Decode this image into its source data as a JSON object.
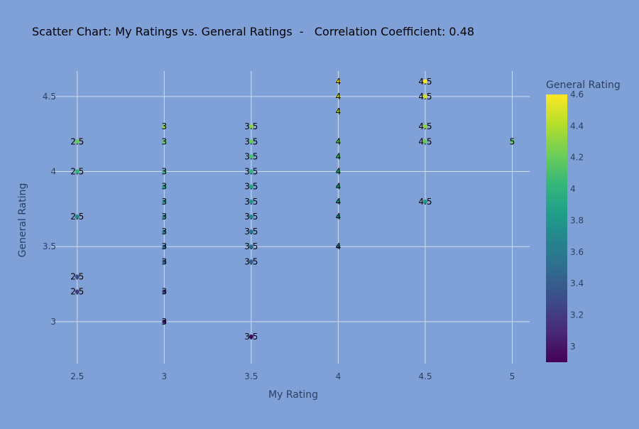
{
  "chart_data": {
    "type": "scatter",
    "title": "Scatter Chart: My Ratings vs. General Ratings  -   Correlation Coefficient: 0.48",
    "xlabel": "My Rating",
    "ylabel": "General Rating",
    "xlim": [
      2.35,
      5.1
    ],
    "ylim": [
      2.72,
      4.67
    ],
    "x_ticks": [
      2.5,
      3,
      3.5,
      4,
      4.5,
      5
    ],
    "x_tick_labels": [
      "2.5",
      "3",
      "3.5",
      "4",
      "4.5",
      "5"
    ],
    "y_ticks": [
      3,
      3.5,
      4,
      4.5
    ],
    "y_tick_labels": [
      "3",
      "3.5",
      "4",
      "4.5"
    ],
    "grid": true,
    "colorbar": {
      "title": "General Rating",
      "min": 2.9,
      "max": 4.6,
      "colorscale": "viridis",
      "ticks": [
        3,
        3.2,
        3.4,
        3.6,
        3.8,
        4,
        4.2,
        4.4,
        4.6
      ],
      "tick_labels": [
        "3",
        "3.2",
        "3.4",
        "3.6",
        "3.8",
        "4",
        "4.2",
        "4.4",
        "4.6"
      ]
    },
    "points": [
      {
        "x": 2.5,
        "y": 4.2,
        "label": "2.5"
      },
      {
        "x": 2.5,
        "y": 4.0,
        "label": "2.5"
      },
      {
        "x": 2.5,
        "y": 3.7,
        "label": "2.5"
      },
      {
        "x": 2.5,
        "y": 3.3,
        "label": "2.5"
      },
      {
        "x": 2.5,
        "y": 3.2,
        "label": "2.5"
      },
      {
        "x": 3,
        "y": 4.3,
        "label": "3"
      },
      {
        "x": 3,
        "y": 4.2,
        "label": "3"
      },
      {
        "x": 3,
        "y": 4.0,
        "label": "3"
      },
      {
        "x": 3,
        "y": 3.9,
        "label": "3"
      },
      {
        "x": 3,
        "y": 3.8,
        "label": "3"
      },
      {
        "x": 3,
        "y": 3.7,
        "label": "3"
      },
      {
        "x": 3,
        "y": 3.6,
        "label": "3"
      },
      {
        "x": 3,
        "y": 3.5,
        "label": "3"
      },
      {
        "x": 3,
        "y": 3.4,
        "label": "3"
      },
      {
        "x": 3,
        "y": 3.2,
        "label": "3"
      },
      {
        "x": 3,
        "y": 3.0,
        "label": "3"
      },
      {
        "x": 3.5,
        "y": 4.3,
        "label": "3.5"
      },
      {
        "x": 3.5,
        "y": 4.2,
        "label": "3.5"
      },
      {
        "x": 3.5,
        "y": 4.1,
        "label": "3.5"
      },
      {
        "x": 3.5,
        "y": 4.0,
        "label": "3.5"
      },
      {
        "x": 3.5,
        "y": 3.9,
        "label": "3.5"
      },
      {
        "x": 3.5,
        "y": 3.8,
        "label": "3.5"
      },
      {
        "x": 3.5,
        "y": 3.7,
        "label": "3.5"
      },
      {
        "x": 3.5,
        "y": 3.6,
        "label": "3.5"
      },
      {
        "x": 3.5,
        "y": 3.5,
        "label": "3.5"
      },
      {
        "x": 3.5,
        "y": 3.4,
        "label": "3.5"
      },
      {
        "x": 3.5,
        "y": 2.9,
        "label": "3.5"
      },
      {
        "x": 4,
        "y": 4.6,
        "label": "4"
      },
      {
        "x": 4,
        "y": 4.5,
        "label": "4"
      },
      {
        "x": 4,
        "y": 4.4,
        "label": "4"
      },
      {
        "x": 4,
        "y": 4.2,
        "label": "4"
      },
      {
        "x": 4,
        "y": 4.1,
        "label": "4"
      },
      {
        "x": 4,
        "y": 4.0,
        "label": "4"
      },
      {
        "x": 4,
        "y": 3.9,
        "label": "4"
      },
      {
        "x": 4,
        "y": 3.8,
        "label": "4"
      },
      {
        "x": 4,
        "y": 3.7,
        "label": "4"
      },
      {
        "x": 4,
        "y": 3.5,
        "label": "4"
      },
      {
        "x": 4.5,
        "y": 4.6,
        "label": "4.5"
      },
      {
        "x": 4.5,
        "y": 4.5,
        "label": "4.5"
      },
      {
        "x": 4.5,
        "y": 4.3,
        "label": "4.5"
      },
      {
        "x": 4.5,
        "y": 4.2,
        "label": "4.5"
      },
      {
        "x": 4.5,
        "y": 3.8,
        "label": "4.5"
      },
      {
        "x": 5,
        "y": 4.2,
        "label": "5"
      }
    ]
  }
}
